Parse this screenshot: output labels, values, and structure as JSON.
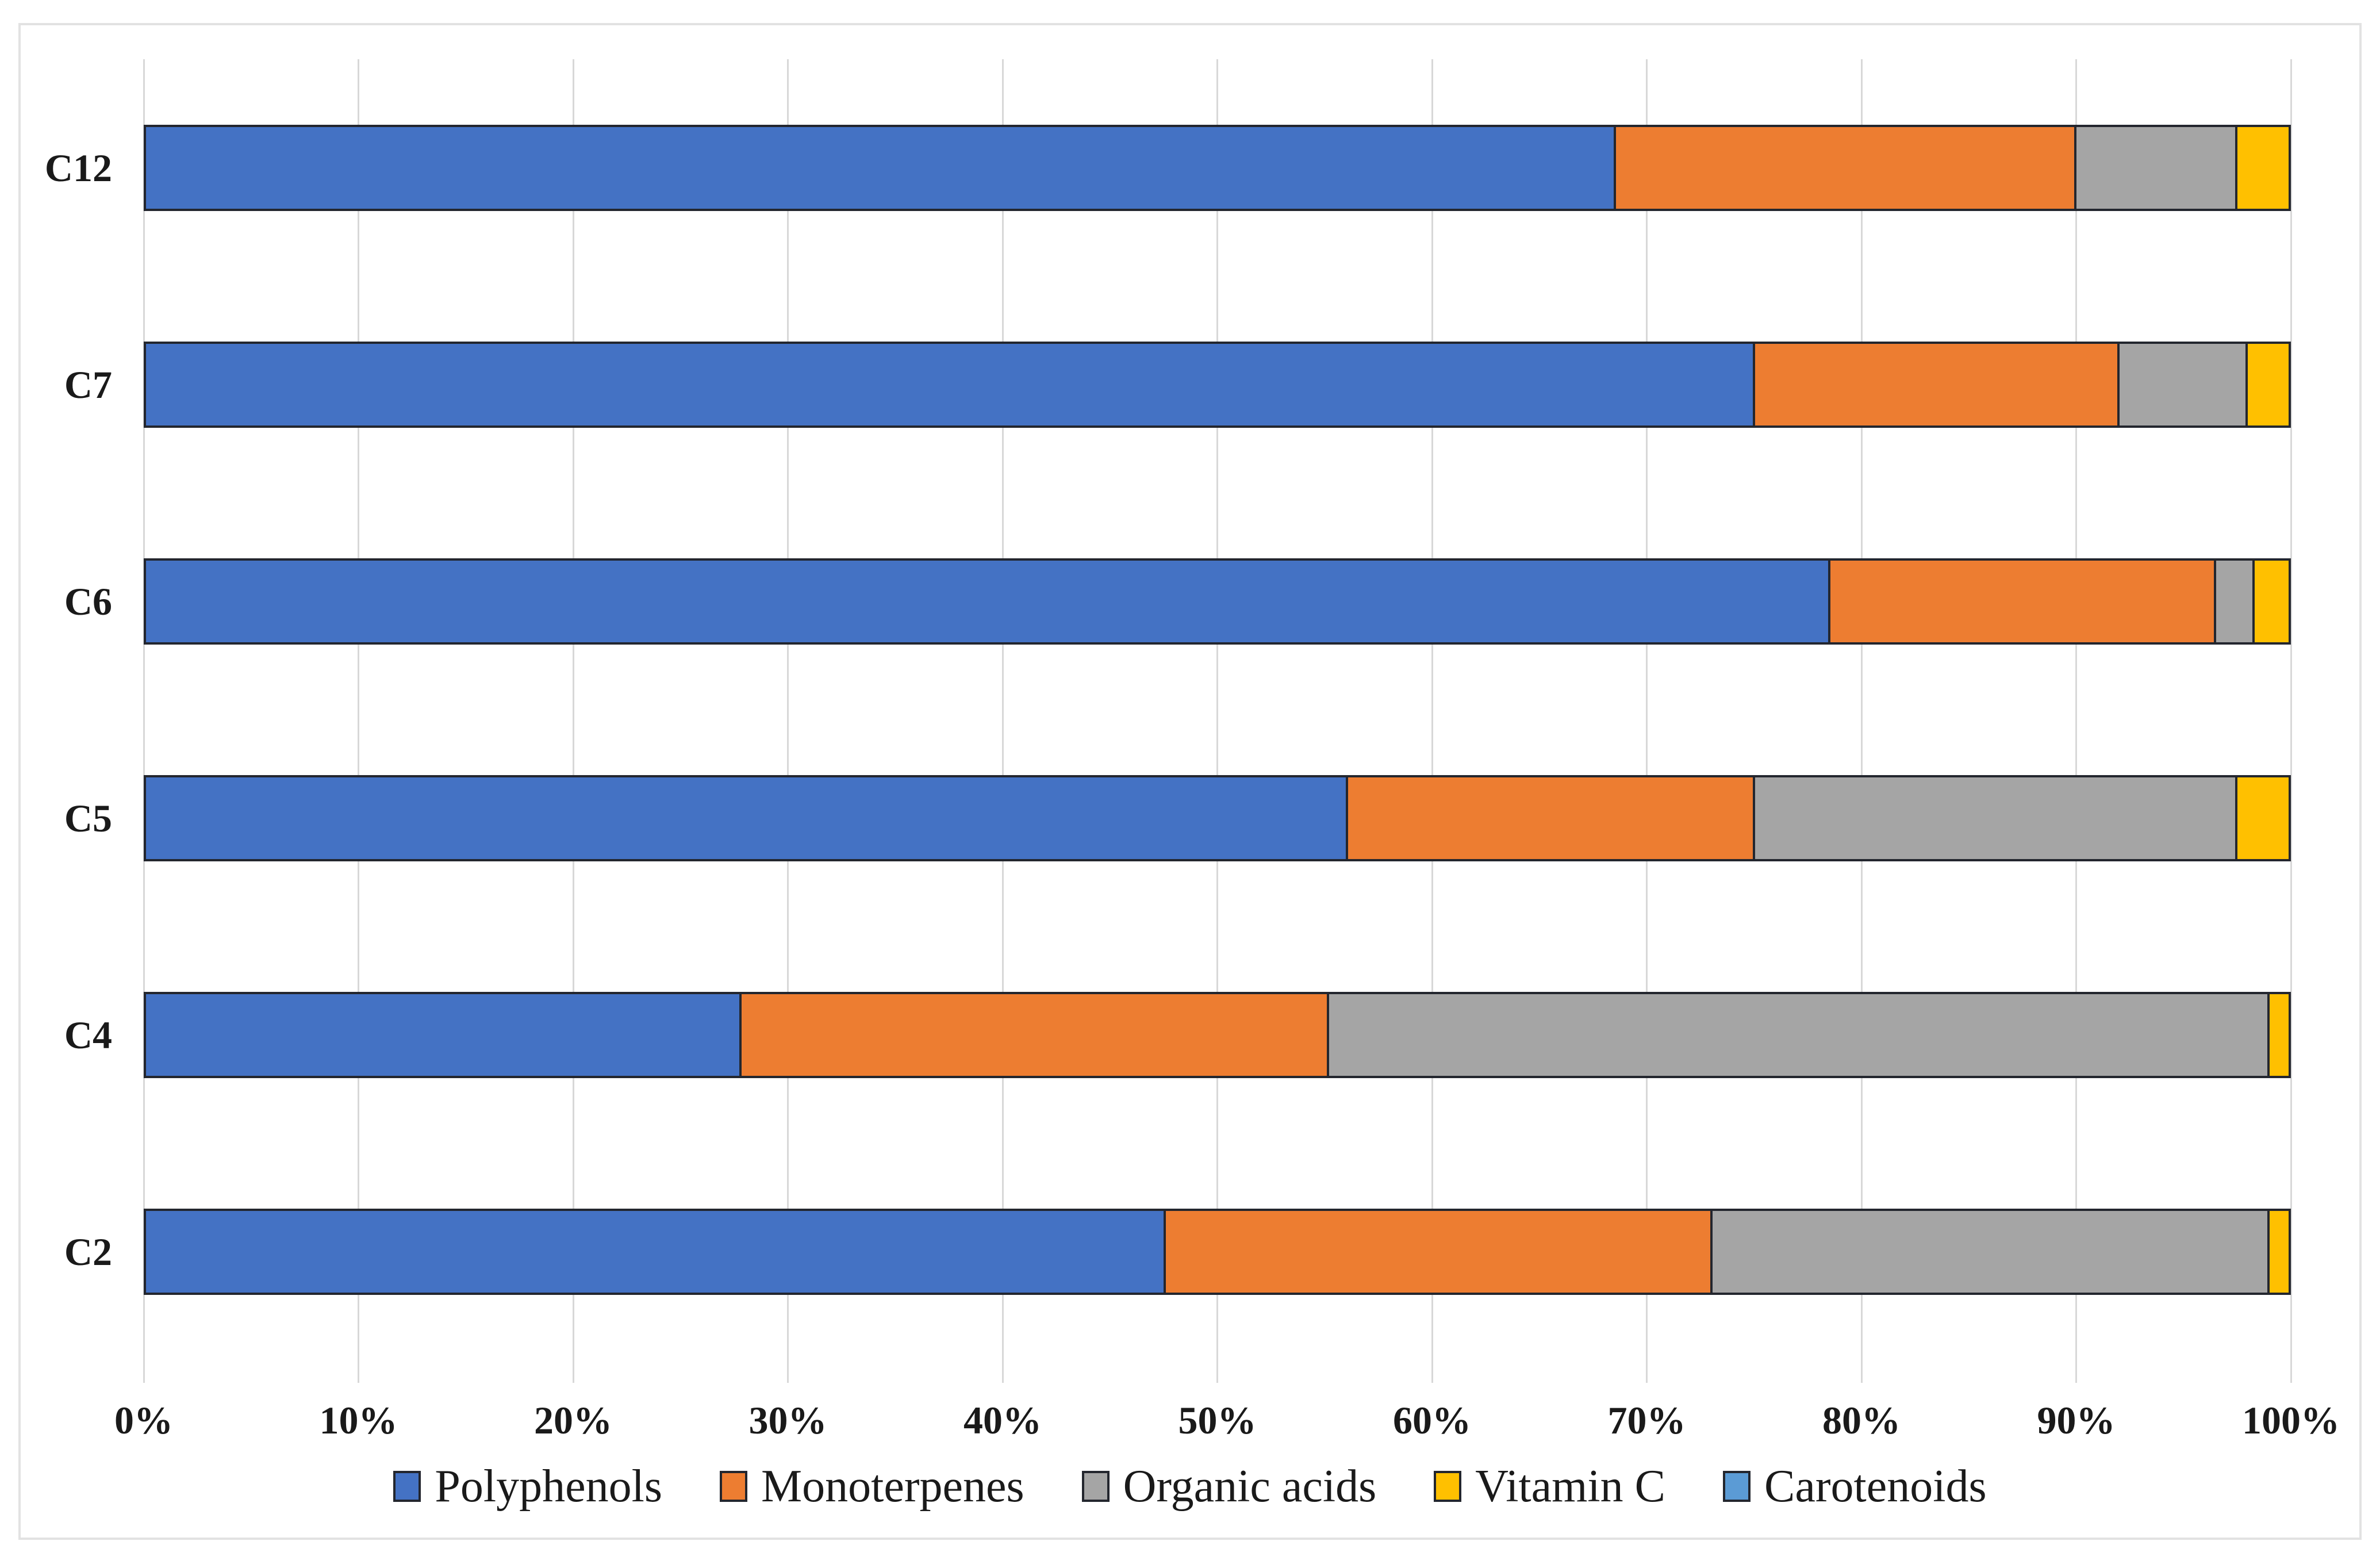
{
  "chart_data": {
    "type": "bar",
    "orientation": "horizontal",
    "stacked": true,
    "unit": "percent",
    "title": "",
    "xlabel": "",
    "ylabel": "",
    "categories": [
      "C12",
      "C7",
      "C6",
      "C5",
      "C4",
      "C2"
    ],
    "series": [
      {
        "name": "Polyphenols",
        "color": "#4472C4",
        "values": [
          68.5,
          75.0,
          78.5,
          56.0,
          27.7,
          47.5
        ]
      },
      {
        "name": "Monoterpenes",
        "color": "#ED7D31",
        "values": [
          21.5,
          17.0,
          18.0,
          19.0,
          27.4,
          25.5
        ]
      },
      {
        "name": "Organic acids",
        "color": "#A5A5A5",
        "values": [
          7.5,
          6.0,
          1.8,
          22.5,
          43.9,
          26.0
        ]
      },
      {
        "name": "Vitamin C",
        "color": "#FFC000",
        "values": [
          2.5,
          2.0,
          1.7,
          2.5,
          1.0,
          1.0
        ]
      },
      {
        "name": "Carotenoids",
        "color": "#5B9BD5",
        "values": [
          0,
          0,
          0,
          0,
          0,
          0
        ]
      }
    ],
    "x_axis": {
      "min": 0,
      "max": 100,
      "tick_labels": [
        "0%",
        "10%",
        "20%",
        "30%",
        "40%",
        "50%",
        "60%",
        "70%",
        "80%",
        "90%",
        "100%"
      ]
    },
    "legend": {
      "position": "bottom",
      "entries": [
        "Polyphenols",
        "Monoterpenes",
        "Organic acids",
        "Vitamin C",
        "Carotenoids"
      ]
    },
    "grid": true
  }
}
